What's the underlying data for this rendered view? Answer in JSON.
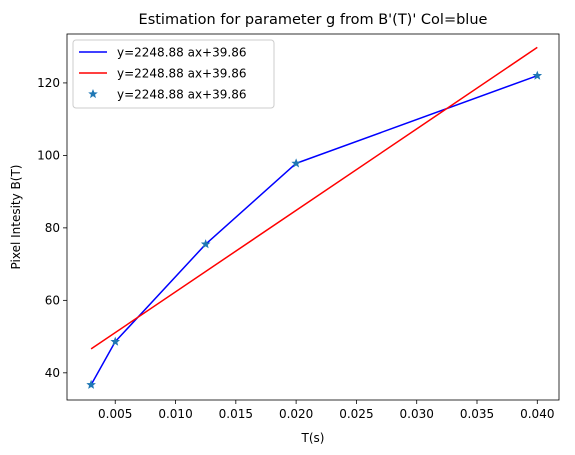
{
  "chart_data": {
    "type": "line",
    "title": "Estimation for parameter g from B'(T)' Col=blue",
    "xlabel": "T(s)",
    "ylabel": "Pixel Intesity B(T)",
    "xlim": [
      0.001,
      0.0418
    ],
    "ylim": [
      32.5,
      133.5
    ],
    "xticks": [
      0.005,
      0.01,
      0.015,
      0.02,
      0.025,
      0.03,
      0.035,
      0.04
    ],
    "xtick_labels": [
      "0.005",
      "0.010",
      "0.015",
      "0.020",
      "0.025",
      "0.030",
      "0.035",
      "0.040"
    ],
    "yticks": [
      40,
      60,
      80,
      100,
      120
    ],
    "ytick_labels": [
      "40",
      "60",
      "80",
      "100",
      "120"
    ],
    "grid": false,
    "legend_position": "top-left",
    "series": [
      {
        "name": "y=2248.88 ax+39.86",
        "kind": "line",
        "color": "#0000ff",
        "x": [
          0.003,
          0.005,
          0.0125,
          0.02,
          0.04
        ],
        "y": [
          36.7,
          48.6,
          75.5,
          97.8,
          122.0
        ]
      },
      {
        "name": "y=2248.88 ax+39.86",
        "kind": "line",
        "color": "#ff0000",
        "x": [
          0.003,
          0.04
        ],
        "y": [
          46.6,
          129.8
        ]
      },
      {
        "name": "y=2248.88 ax+39.86",
        "kind": "scatter",
        "marker": "star",
        "color": "#1f77b4",
        "x": [
          0.003,
          0.005,
          0.0125,
          0.02,
          0.04
        ],
        "y": [
          36.7,
          48.6,
          75.5,
          97.8,
          122.0
        ]
      }
    ]
  }
}
